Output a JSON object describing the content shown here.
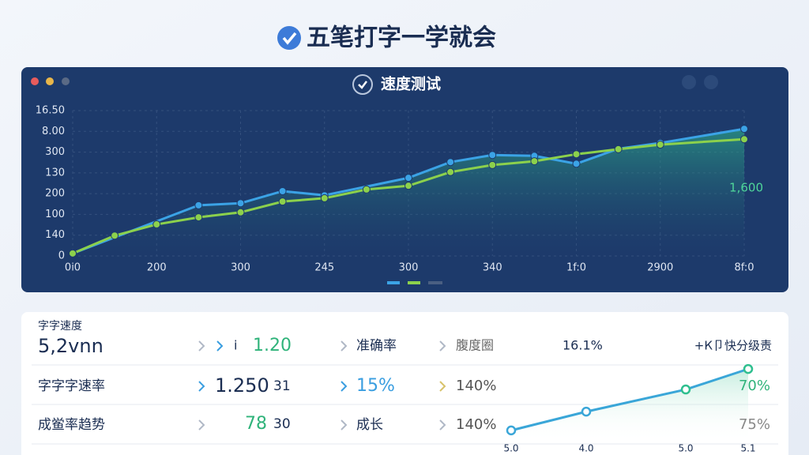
{
  "header": {
    "title": "五笔打字一学就会"
  },
  "window": {
    "title": "速度测试"
  },
  "chart_data": {
    "type": "line",
    "xlim": [
      0,
      8
    ],
    "xticks": [
      {
        "value": 0,
        "label": "0i0"
      },
      {
        "value": 1,
        "label": "200"
      },
      {
        "value": 2,
        "label": "300"
      },
      {
        "value": 3,
        "label": "245"
      },
      {
        "value": 4,
        "label": "300"
      },
      {
        "value": 5,
        "label": "340"
      },
      {
        "value": 6,
        "label": "1f:0"
      },
      {
        "value": 7,
        "label": "2900"
      },
      {
        "value": 8,
        "label": "8f:0"
      }
    ],
    "ylim": [
      0,
      350
    ],
    "yticks": [
      0,
      {
        "value": 50,
        "label": "140"
      },
      100,
      {
        "value": 150,
        "label": "200"
      },
      {
        "value": 200,
        "label": "130"
      },
      {
        "value": 250,
        "label": "300"
      },
      {
        "value": 300,
        "label": "8.00"
      },
      {
        "value": 350,
        "label": "16.50"
      }
    ],
    "grid": true,
    "series": [
      {
        "color": "#3ba3e6",
        "x": [
          0,
          1.5,
          2,
          2.5,
          3,
          4,
          4.5,
          5,
          5.5,
          6,
          6.5,
          7,
          8
        ],
        "values": [
          6,
          122,
          127,
          156,
          146,
          188,
          226,
          243,
          241,
          222,
          258,
          272,
          306
        ]
      },
      {
        "color": "#8cd14c",
        "x": [
          0,
          0.5,
          1,
          1.5,
          2,
          2.5,
          3,
          3.5,
          4,
          4.5,
          5,
          5.5,
          6,
          6.5,
          7,
          8
        ],
        "values": [
          6,
          49,
          76,
          93,
          105,
          131,
          139,
          160,
          169,
          202,
          219,
          228,
          245,
          257,
          268,
          281
        ]
      }
    ],
    "annotation": "1,600"
  },
  "stats": {
    "rows": [
      [
        "字字速度",
        "5,2vnn",
        "i",
        "1.20",
        "准确率",
        "腹度圈",
        "16.1%",
        "+К卩快分级责"
      ],
      [
        "字字字速率",
        "1.250",
        "31",
        "15%",
        "140%",
        "70%"
      ],
      [
        "成鲎率趋势",
        "78",
        "30",
        "成长",
        "140%",
        "75%"
      ]
    ]
  },
  "sparkline": {
    "x_labels": [
      "5.0",
      "4.0",
      "5.0",
      "5.1"
    ],
    "values": [
      7,
      18,
      31,
      43
    ],
    "ylim": [
      0,
      50
    ]
  }
}
